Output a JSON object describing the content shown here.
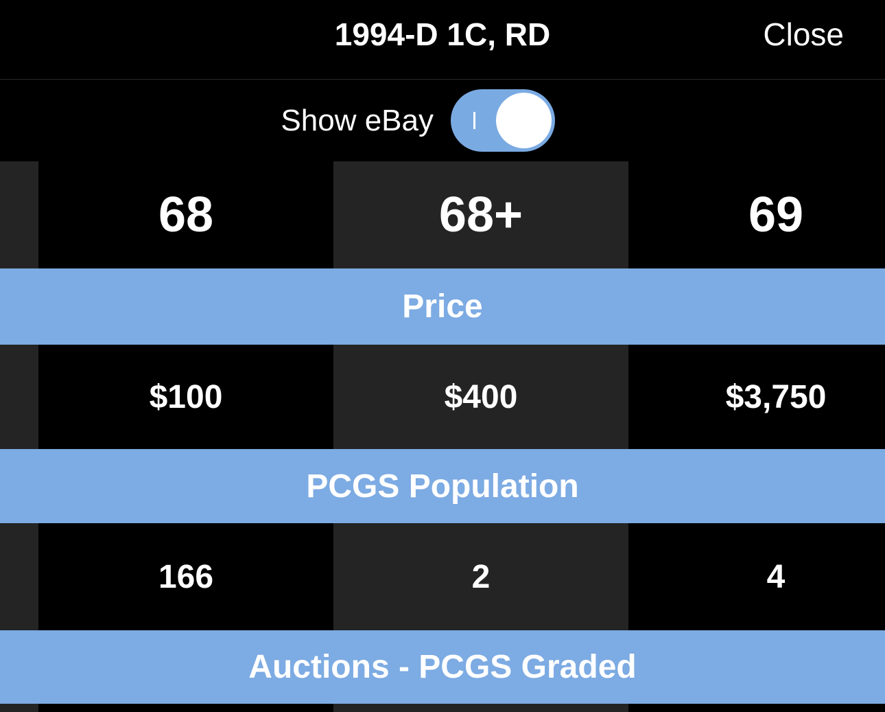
{
  "header": {
    "title": "1994-D 1C, RD",
    "close": "Close"
  },
  "toggle": {
    "label": "Show eBay"
  },
  "grades": [
    "68",
    "68+",
    "69"
  ],
  "sections": [
    {
      "title": "Price",
      "values": [
        "$100",
        "$400",
        "$3,750"
      ]
    },
    {
      "title": "PCGS Population",
      "values": [
        "166",
        "2",
        "4"
      ]
    },
    {
      "title": "Auctions - PCGS Graded"
    }
  ]
}
